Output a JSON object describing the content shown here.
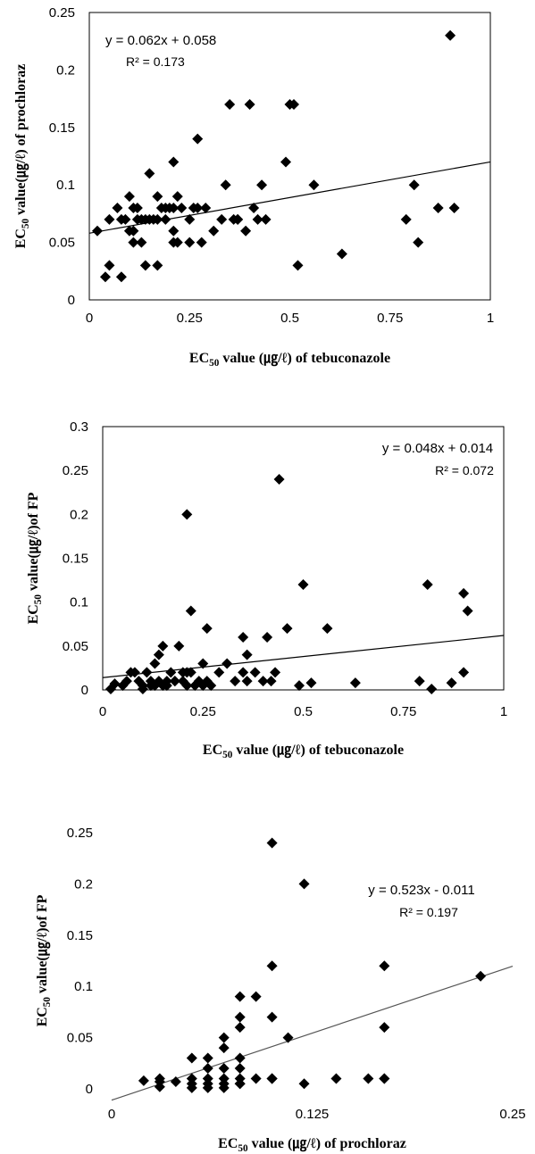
{
  "chart_data": [
    {
      "type": "scatter",
      "xlabel": "EC50 value (㎍/ℓ) of tebuconazole",
      "ylabel": "EC50 value(㎍/ℓ) of prochloraz",
      "xlim": [
        0,
        1
      ],
      "ylim": [
        0,
        0.25
      ],
      "x_ticks": [
        "0",
        "0.25",
        "0.5",
        "0.75",
        "1"
      ],
      "y_ticks": [
        "0",
        "0.05",
        "0.1",
        "0.15",
        "0.2",
        "0.25"
      ],
      "trendline": {
        "slope": 0.062,
        "intercept": 0.058
      },
      "equation": "y = 0.062x + 0.058",
      "r2": "R² = 0.173",
      "x": [
        0.02,
        0.04,
        0.05,
        0.05,
        0.07,
        0.08,
        0.08,
        0.09,
        0.1,
        0.1,
        0.11,
        0.11,
        0.11,
        0.12,
        0.12,
        0.13,
        0.13,
        0.14,
        0.14,
        0.15,
        0.15,
        0.16,
        0.17,
        0.17,
        0.17,
        0.18,
        0.19,
        0.19,
        0.2,
        0.21,
        0.21,
        0.21,
        0.21,
        0.22,
        0.22,
        0.23,
        0.25,
        0.25,
        0.26,
        0.27,
        0.27,
        0.28,
        0.29,
        0.31,
        0.33,
        0.34,
        0.35,
        0.36,
        0.37,
        0.37,
        0.39,
        0.4,
        0.41,
        0.42,
        0.43,
        0.44,
        0.49,
        0.5,
        0.51,
        0.52,
        0.56,
        0.63,
        0.79,
        0.81,
        0.82,
        0.87,
        0.9,
        0.91
      ],
      "y": [
        0.06,
        0.02,
        0.03,
        0.07,
        0.08,
        0.02,
        0.07,
        0.07,
        0.06,
        0.09,
        0.05,
        0.06,
        0.08,
        0.07,
        0.08,
        0.05,
        0.07,
        0.03,
        0.07,
        0.07,
        0.11,
        0.07,
        0.03,
        0.07,
        0.09,
        0.08,
        0.07,
        0.08,
        0.08,
        0.05,
        0.06,
        0.08,
        0.12,
        0.05,
        0.09,
        0.08,
        0.07,
        0.05,
        0.08,
        0.14,
        0.08,
        0.05,
        0.08,
        0.06,
        0.07,
        0.1,
        0.17,
        0.07,
        0.07,
        0.07,
        0.06,
        0.17,
        0.08,
        0.07,
        0.1,
        0.07,
        0.12,
        0.17,
        0.17,
        0.03,
        0.1,
        0.04,
        0.07,
        0.1,
        0.05,
        0.08,
        0.23,
        0.08
      ]
    },
    {
      "type": "scatter",
      "xlabel": "EC50 value (㎍/ℓ) of tebuconazole",
      "ylabel": "EC50 value(㎍/ℓ)of FP",
      "xlim": [
        0,
        1
      ],
      "ylim": [
        0,
        0.3
      ],
      "x_ticks": [
        "0",
        "0.25",
        "0.5",
        "0.75",
        "1"
      ],
      "y_ticks": [
        "0",
        "0.05",
        "0.1",
        "0.15",
        "0.2",
        "0.25",
        "0.3"
      ],
      "trendline": {
        "slope": 0.048,
        "intercept": 0.014
      },
      "equation": "y = 0.048x + 0.014",
      "r2": "R² = 0.072",
      "x": [
        0.02,
        0.03,
        0.05,
        0.06,
        0.07,
        0.08,
        0.09,
        0.1,
        0.1,
        0.11,
        0.12,
        0.12,
        0.13,
        0.13,
        0.14,
        0.14,
        0.15,
        0.15,
        0.16,
        0.16,
        0.17,
        0.18,
        0.18,
        0.19,
        0.2,
        0.2,
        0.21,
        0.21,
        0.21,
        0.22,
        0.22,
        0.23,
        0.24,
        0.25,
        0.25,
        0.26,
        0.26,
        0.27,
        0.29,
        0.31,
        0.33,
        0.35,
        0.35,
        0.36,
        0.36,
        0.38,
        0.4,
        0.41,
        0.42,
        0.43,
        0.44,
        0.46,
        0.49,
        0.5,
        0.52,
        0.56,
        0.63,
        0.79,
        0.81,
        0.82,
        0.87,
        0.9,
        0.9,
        0.91
      ],
      "y": [
        0.001,
        0.007,
        0.005,
        0.01,
        0.02,
        0.02,
        0.01,
        0.001,
        0.005,
        0.02,
        0.005,
        0.01,
        0.005,
        0.03,
        0.01,
        0.04,
        0.005,
        0.05,
        0.01,
        0.005,
        0.02,
        0.01,
        0.01,
        0.05,
        0.02,
        0.01,
        0.005,
        0.02,
        0.2,
        0.09,
        0.02,
        0.005,
        0.01,
        0.005,
        0.03,
        0.01,
        0.07,
        0.005,
        0.02,
        0.03,
        0.01,
        0.02,
        0.06,
        0.04,
        0.01,
        0.02,
        0.01,
        0.06,
        0.01,
        0.02,
        0.24,
        0.07,
        0.005,
        0.12,
        0.008,
        0.07,
        0.008,
        0.01,
        0.12,
        0.001,
        0.008,
        0.02,
        0.11,
        0.09
      ]
    },
    {
      "type": "scatter",
      "xlabel": "EC50 value (㎍/ℓ) of prochloraz",
      "ylabel": "EC50 value(㎍/ℓ)of FP",
      "xlim": [
        0,
        0.25
      ],
      "ylim": [
        0,
        0.25
      ],
      "x_ticks": [
        "0",
        "0.125",
        "0.25"
      ],
      "y_ticks": [
        "0",
        "0.05",
        "0.1",
        "0.15",
        "0.2",
        "0.25"
      ],
      "trendline": {
        "slope": 0.523,
        "intercept": -0.011
      },
      "equation": "y = 0.523x - 0.011",
      "r2": "R² = 0.197",
      "x": [
        0.02,
        0.03,
        0.03,
        0.03,
        0.04,
        0.05,
        0.05,
        0.05,
        0.05,
        0.06,
        0.06,
        0.06,
        0.06,
        0.06,
        0.07,
        0.07,
        0.07,
        0.07,
        0.07,
        0.07,
        0.08,
        0.08,
        0.08,
        0.08,
        0.08,
        0.08,
        0.08,
        0.08,
        0.09,
        0.09,
        0.1,
        0.1,
        0.1,
        0.1,
        0.1,
        0.1,
        0.11,
        0.12,
        0.12,
        0.14,
        0.16,
        0.17,
        0.17,
        0.17,
        0.17,
        0.23
      ],
      "y": [
        0.008,
        0.002,
        0.007,
        0.01,
        0.007,
        0.001,
        0.01,
        0.005,
        0.03,
        0.001,
        0.005,
        0.01,
        0.02,
        0.03,
        0.001,
        0.005,
        0.01,
        0.02,
        0.04,
        0.05,
        0.005,
        0.01,
        0.02,
        0.03,
        0.06,
        0.07,
        0.09,
        0.005,
        0.01,
        0.09,
        0.01,
        0.07,
        0.12,
        0.24,
        0.01,
        0.01,
        0.05,
        0.2,
        0.005,
        0.01,
        0.01,
        0.01,
        0.06,
        0.12,
        0.01,
        0.11
      ]
    }
  ]
}
